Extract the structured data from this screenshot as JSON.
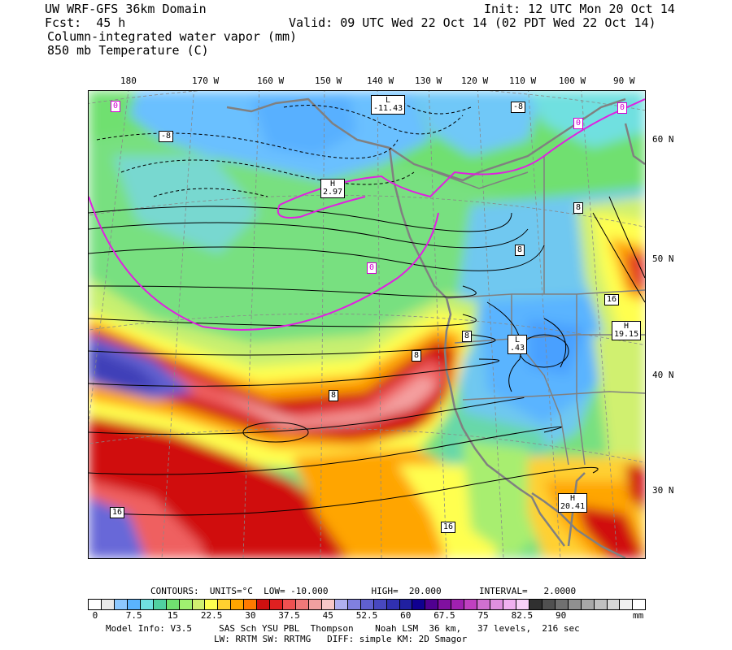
{
  "header": {
    "line1_left": "UW WRF-GFS 36km Domain",
    "line1_right": "Init: 12 UTC Mon 20 Oct 14",
    "line2_left": "Fcst:  45 h",
    "line2_right": "Valid: 09 UTC Wed 22 Oct 14 (02 PDT Wed 22 Oct 14)",
    "line3": "Column-integrated water vapor (mm)",
    "line4": "850 mb Temperature (C)"
  },
  "longitudes": [
    "180",
    "170 W",
    "160 W",
    "150 W",
    "140 W",
    "130 W",
    "120 W",
    "110 W",
    "100 W",
    "90 W"
  ],
  "latitudes": [
    "60 N",
    "50 N",
    "40 N",
    "30 N"
  ],
  "map_labels": {
    "low1_letter": "L",
    "low1_value": "-11.43",
    "high1_letter": "H",
    "high1_value": "2.97",
    "low2_letter": "L",
    "low2_value": ".43",
    "high2_letter": "H",
    "high2_value": "19.15",
    "high3_letter": "H",
    "high3_value": "20.41",
    "c_m8a": "-8",
    "c_m8b": "-8",
    "c_0a": "0",
    "c_0b": "0",
    "c_0c": "0",
    "c_0d": "0",
    "c_8a": "8",
    "c_8b": "8",
    "c_8c": "8",
    "c_8d": "8",
    "c_8e": "8",
    "c_16a": "16",
    "c_16b": "16",
    "c_16c": "16"
  },
  "contours_line": "CONTOURS:  UNITS=°C  LOW= -10.000        HIGH=  20.000       INTERVAL=   2.0000",
  "colorbar": {
    "unit": "mm",
    "tick_labels": [
      "0",
      "7.5",
      "15",
      "22.5",
      "30",
      "37.5",
      "45",
      "52.5",
      "60",
      "67.5",
      "75",
      "82.5",
      "90"
    ],
    "colors": [
      "#ffffff",
      "#e8e8e8",
      "#8cc8ff",
      "#5ab4ff",
      "#70e0e0",
      "#50d0a0",
      "#70e070",
      "#a0f070",
      "#d0f070",
      "#ffff50",
      "#ffd030",
      "#ffa500",
      "#ff7a00",
      "#d01010",
      "#e02020",
      "#f05050",
      "#f07878",
      "#f0a0a0",
      "#f8c8c8",
      "#b0b0f0",
      "#8080e0",
      "#6060d0",
      "#4848c0",
      "#3030b0",
      "#2020a0",
      "#100090",
      "#500090",
      "#8010a0",
      "#a020b0",
      "#c040c0",
      "#d070d0",
      "#e090e0",
      "#f0b0f0",
      "#f8d0f8",
      "#303030",
      "#505050",
      "#707070",
      "#909090",
      "#a8a8a8",
      "#c0c0c0",
      "#d8d8d8",
      "#f0f0f0",
      "#ffffff"
    ]
  },
  "footer": {
    "line1": "Model Info: V3.5     SAS Sch YSU PBL  Thompson    Noah LSM  36 km,   37 levels,  216 sec",
    "line2": "LW: RRTM SW: RRTMG   DIFF: simple KM: 2D Smagor"
  }
}
